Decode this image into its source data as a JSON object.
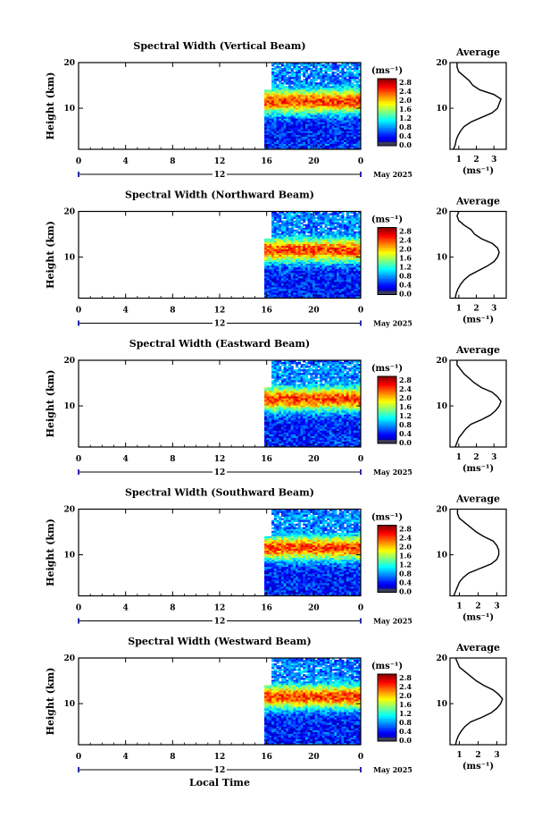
{
  "figure": {
    "x_axis_label": "Local Time",
    "date_label": "May 2025",
    "colorbar_unit": "(ms⁻¹)",
    "colorbar_ticks": [
      "0.0",
      "0.4",
      "0.8",
      "1.2",
      "1.6",
      "2.0",
      "2.4",
      "2.8"
    ],
    "avg_title": "Average",
    "avg_unit": "(ms⁻¹)",
    "y_axis_label": "Height (km)"
  },
  "chart_data": [
    {
      "type": "heatmap",
      "title": "Spectral Width (Vertical Beam)",
      "ylabel": "Height (km)",
      "xlabel": "",
      "x_ticks": [
        "0",
        "4",
        "8",
        "12",
        "16",
        "20",
        "0"
      ],
      "xlim": [
        0,
        24
      ],
      "ylim": [
        1,
        20
      ],
      "y_ticks": [
        "10",
        "20"
      ],
      "data_start_hour": 15.8,
      "day_marker": "12",
      "colorbar": {
        "min": 0.0,
        "max": 3.0,
        "unit": "ms-1"
      },
      "average_profile": {
        "x_ticks": [
          "1",
          "2",
          "3"
        ],
        "xlim": [
          0.5,
          3.7
        ],
        "height_km": [
          1,
          2,
          3,
          4,
          5,
          6,
          7,
          8,
          9,
          10,
          11,
          12,
          13,
          14,
          15,
          16,
          17,
          18,
          19,
          20
        ],
        "width_ms": [
          0.7,
          0.8,
          0.85,
          0.95,
          1.1,
          1.3,
          1.7,
          2.3,
          2.9,
          3.2,
          3.3,
          3.4,
          3.0,
          2.2,
          1.8,
          1.6,
          1.3,
          1.0,
          0.9,
          0.9
        ]
      }
    },
    {
      "type": "heatmap",
      "title": "Spectral Width (Northward Beam)",
      "ylabel": "Height (km)",
      "xlabel": "",
      "x_ticks": [
        "0",
        "4",
        "8",
        "12",
        "16",
        "20",
        "0"
      ],
      "xlim": [
        0,
        24
      ],
      "ylim": [
        1,
        20
      ],
      "y_ticks": [
        "10",
        "20"
      ],
      "data_start_hour": 15.8,
      "day_marker": "12",
      "colorbar": {
        "min": 0.0,
        "max": 3.0,
        "unit": "ms-1"
      },
      "average_profile": {
        "x_ticks": [
          "1",
          "2",
          "3"
        ],
        "xlim": [
          0.5,
          3.7
        ],
        "height_km": [
          1,
          2,
          3,
          4,
          5,
          6,
          7,
          8,
          9,
          10,
          11,
          12,
          13,
          14,
          15,
          16,
          17,
          18,
          19,
          20
        ],
        "width_ms": [
          0.8,
          0.85,
          0.95,
          1.1,
          1.3,
          1.6,
          2.1,
          2.6,
          3.0,
          3.2,
          3.3,
          3.2,
          2.9,
          2.3,
          1.9,
          1.7,
          1.3,
          1.0,
          0.9,
          1.0
        ]
      }
    },
    {
      "type": "heatmap",
      "title": "Spectral Width (Eastward Beam)",
      "ylabel": "Height (km)",
      "xlabel": "",
      "x_ticks": [
        "0",
        "4",
        "8",
        "12",
        "16",
        "20",
        "0"
      ],
      "xlim": [
        0,
        24
      ],
      "ylim": [
        1,
        20
      ],
      "y_ticks": [
        "10",
        "20"
      ],
      "data_start_hour": 15.8,
      "day_marker": "12",
      "colorbar": {
        "min": 0.0,
        "max": 3.0,
        "unit": "ms-1"
      },
      "average_profile": {
        "x_ticks": [
          "1",
          "2",
          "3"
        ],
        "xlim": [
          0.5,
          3.7
        ],
        "height_km": [
          1,
          2,
          3,
          4,
          5,
          6,
          7,
          8,
          9,
          10,
          11,
          12,
          13,
          14,
          15,
          16,
          17,
          18,
          19,
          20
        ],
        "width_ms": [
          0.8,
          0.9,
          1.0,
          1.2,
          1.4,
          1.7,
          2.3,
          2.8,
          3.1,
          3.3,
          3.4,
          3.2,
          2.9,
          2.3,
          1.9,
          1.6,
          1.3,
          1.1,
          0.9,
          0.9
        ]
      }
    },
    {
      "type": "heatmap",
      "title": "Spectral Width (Southward Beam)",
      "ylabel": "Height (km)",
      "xlabel": "",
      "x_ticks": [
        "0",
        "4",
        "8",
        "12",
        "16",
        "20",
        "0"
      ],
      "xlim": [
        0,
        24
      ],
      "ylim": [
        1,
        20
      ],
      "y_ticks": [
        "10",
        "20"
      ],
      "data_start_hour": 15.8,
      "day_marker": "12",
      "colorbar": {
        "min": 0.0,
        "max": 3.0,
        "unit": "ms-1"
      },
      "average_profile": {
        "x_ticks": [
          "1",
          "2",
          "3"
        ],
        "xlim": [
          0.5,
          3.5
        ],
        "height_km": [
          1,
          2,
          3,
          4,
          5,
          6,
          7,
          8,
          9,
          10,
          11,
          12,
          13,
          14,
          15,
          16,
          17,
          18,
          19,
          20
        ],
        "width_ms": [
          0.7,
          0.8,
          0.9,
          1.0,
          1.2,
          1.5,
          2.1,
          2.7,
          3.0,
          3.1,
          3.1,
          3.0,
          2.8,
          2.3,
          1.9,
          1.6,
          1.3,
          1.0,
          0.9,
          0.9
        ]
      }
    },
    {
      "type": "heatmap",
      "title": "Spectral Width (Westward Beam)",
      "ylabel": "Height (km)",
      "xlabel": "Local Time",
      "x_ticks": [
        "0",
        "4",
        "8",
        "12",
        "16",
        "20",
        "0"
      ],
      "xlim": [
        0,
        24
      ],
      "ylim": [
        1,
        20
      ],
      "y_ticks": [
        "10",
        "20"
      ],
      "data_start_hour": 15.8,
      "day_marker": "12",
      "colorbar": {
        "min": 0.0,
        "max": 3.0,
        "unit": "ms-1"
      },
      "average_profile": {
        "x_ticks": [
          "1",
          "2",
          "3"
        ],
        "xlim": [
          0.5,
          3.5
        ],
        "height_km": [
          1,
          2,
          3,
          4,
          5,
          6,
          7,
          8,
          9,
          10,
          11,
          12,
          13,
          14,
          15,
          16,
          17,
          18,
          19,
          20
        ],
        "width_ms": [
          0.8,
          0.85,
          0.95,
          1.1,
          1.3,
          1.6,
          2.2,
          2.7,
          3.0,
          3.2,
          3.3,
          3.1,
          2.8,
          2.3,
          1.9,
          1.6,
          1.3,
          1.0,
          0.9,
          0.8
        ]
      }
    }
  ]
}
